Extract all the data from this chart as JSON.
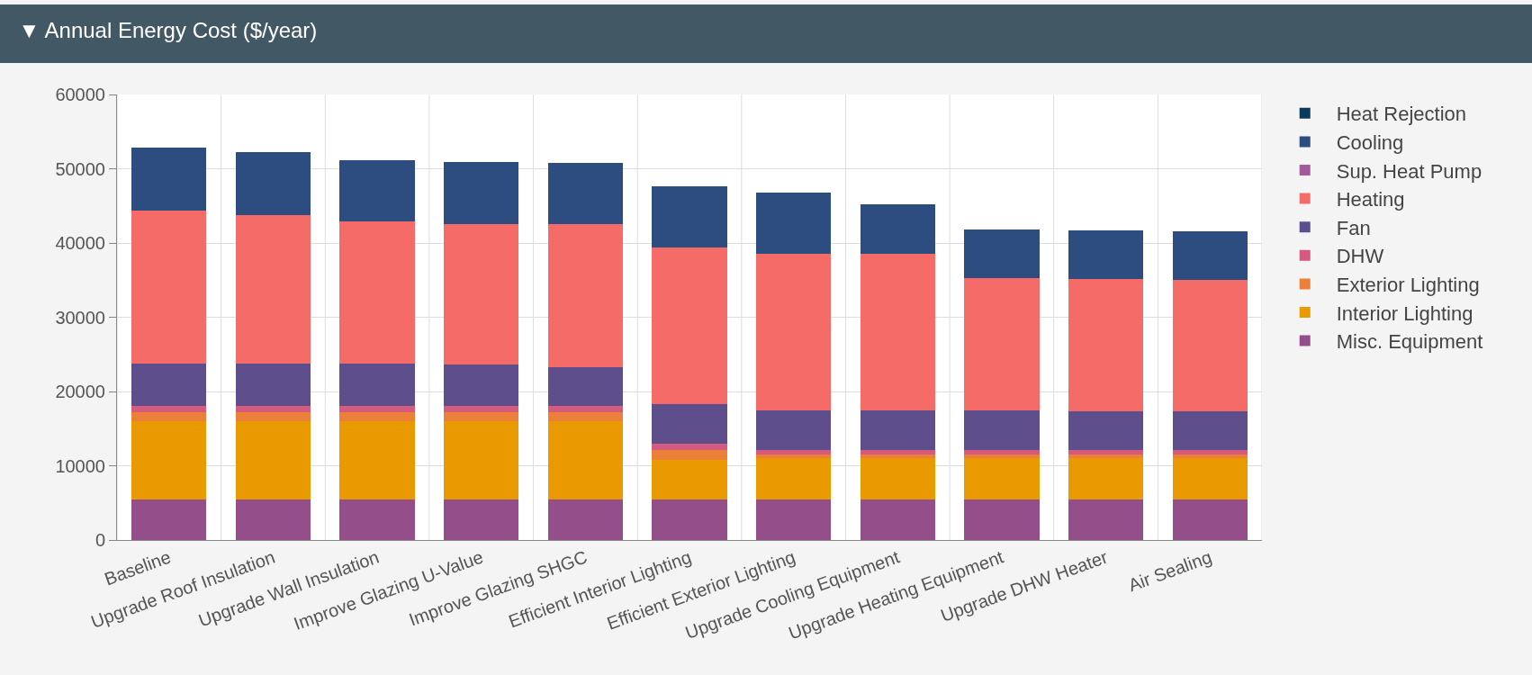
{
  "chart_data": {
    "type": "bar",
    "stacked": true,
    "title": "▼ Annual Energy Cost ($/year)",
    "categories": [
      "Baseline",
      "Upgrade Roof Insulation",
      "Upgrade Wall Insulation",
      "Improve Glazing U-Value",
      "Improve Glazing SHGC",
      "Efficient Interior Lighting",
      "Efficient Exterior Lighting",
      "Upgrade Cooling Equipment",
      "Upgrade Heating Equipment",
      "Upgrade DHW Heater",
      "Air Sealing"
    ],
    "series": [
      {
        "name": "Misc. Equipment",
        "color": "#944f8a",
        "values": [
          5500,
          5500,
          5500,
          5500,
          5500,
          5500,
          5500,
          5500,
          5500,
          5500,
          5500
        ]
      },
      {
        "name": "Interior Lighting",
        "color": "#e89a00",
        "values": [
          10500,
          10500,
          10500,
          10500,
          10500,
          5300,
          5500,
          5500,
          5500,
          5500,
          5500
        ]
      },
      {
        "name": "Exterior Lighting",
        "color": "#ec7f3a",
        "values": [
          1200,
          1200,
          1200,
          1200,
          1200,
          1300,
          500,
          500,
          500,
          500,
          500
        ]
      },
      {
        "name": "DHW",
        "color": "#d45a7e",
        "values": [
          900,
          900,
          900,
          900,
          900,
          900,
          600,
          600,
          600,
          600,
          600
        ]
      },
      {
        "name": "Fan",
        "color": "#5e4f8c",
        "values": [
          5600,
          5600,
          5600,
          5500,
          5200,
          5300,
          5300,
          5300,
          5300,
          5200,
          5200
        ]
      },
      {
        "name": "Heating",
        "color": "#f56b68",
        "values": [
          20700,
          20100,
          19200,
          18900,
          19300,
          21100,
          21200,
          21200,
          17900,
          17800,
          17700
        ]
      },
      {
        "name": "Sup. Heat Pump",
        "color": "#a45a9a",
        "values": [
          0,
          0,
          0,
          0,
          0,
          0,
          0,
          0,
          0,
          0,
          0
        ]
      },
      {
        "name": "Cooling",
        "color": "#2d4d80",
        "values": [
          8450,
          8400,
          8200,
          8350,
          8150,
          8200,
          8200,
          6600,
          6500,
          6600,
          6600
        ]
      },
      {
        "name": "Heat Rejection",
        "color": "#0b3a5c",
        "values": [
          0,
          0,
          0,
          0,
          0,
          0,
          0,
          0,
          0,
          0,
          0
        ]
      }
    ],
    "ylim": [
      0,
      60000
    ],
    "yticks": [
      0,
      10000,
      20000,
      30000,
      40000,
      50000,
      60000
    ],
    "grid": true,
    "legend": "right"
  }
}
